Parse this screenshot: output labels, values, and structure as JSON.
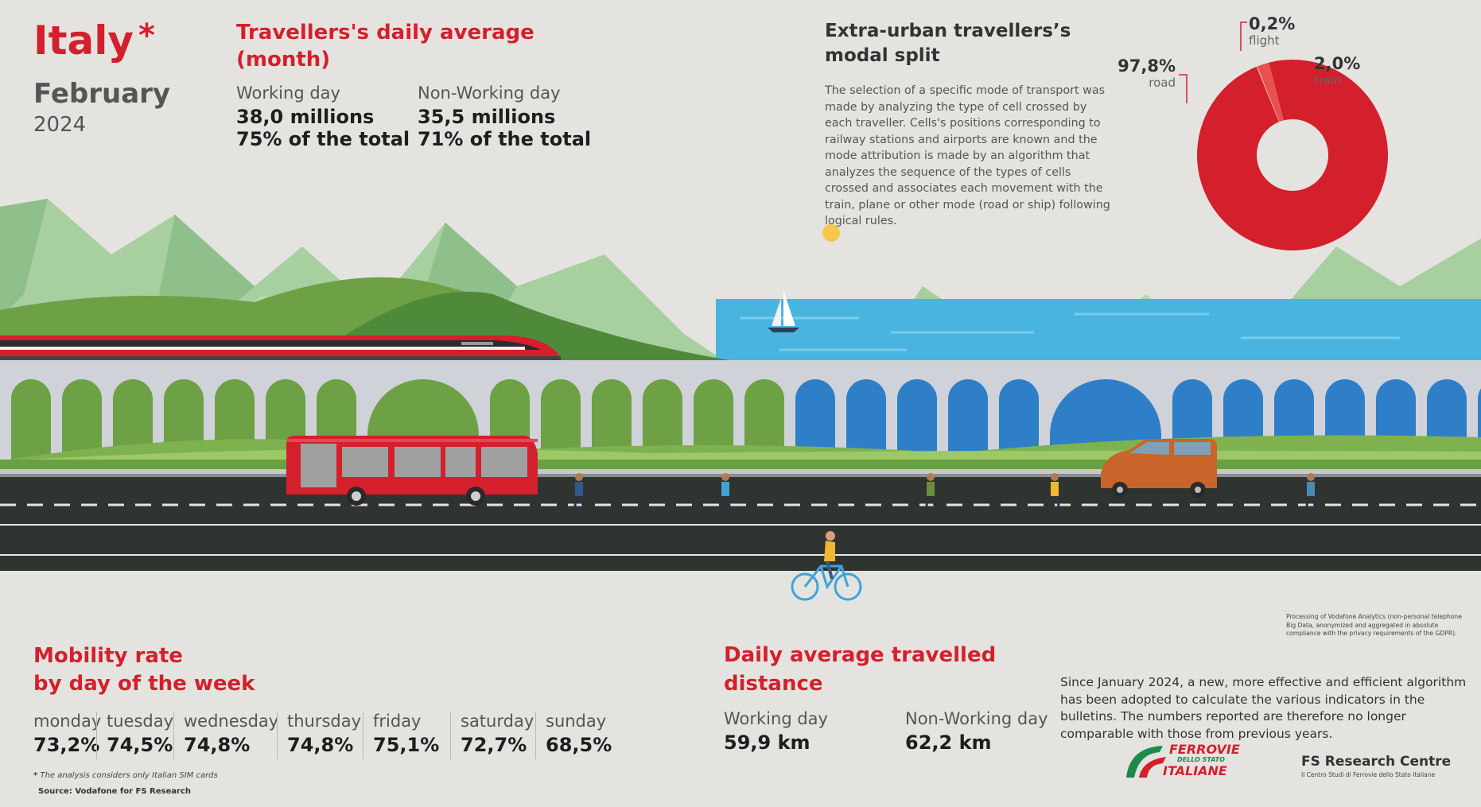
{
  "header": {
    "country": "Italy",
    "asterisk": "*",
    "month": "February",
    "year": "2024"
  },
  "daily_average": {
    "title_line1": "Travellers's daily average",
    "title_line2": "(month)",
    "working_label": "Working day",
    "working_value": "38,0 millions",
    "working_share": "75% of the total",
    "nonworking_label": "Non-Working day",
    "nonworking_value": "35,5 millions",
    "nonworking_share": "71% of the total"
  },
  "modal_split": {
    "title_line1": "Extra-urban travellers’s",
    "title_line2": "modal split",
    "description": "The selection of a specific mode of transport was made by analyzing the type of cell crossed by each traveller. Cells's positions corresponding to railway stations and airports are known and the mode attribution is made by an algorithm that analyzes the sequence of the types of cells crossed and associates each movement with the train, plane or other mode (road or ship) following logical rules."
  },
  "chart_data": [
    {
      "type": "pie",
      "title": "Extra-urban travellers’s modal split",
      "categories": [
        "road",
        "flight",
        "train"
      ],
      "values": [
        97.8,
        0.2,
        2.0
      ],
      "value_labels": [
        "97,8%",
        "0,2%",
        "2,0%"
      ],
      "colors": [
        "#d41f2c",
        "#f29b8c",
        "#e8514f"
      ],
      "donut": true
    },
    {
      "type": "table",
      "title": "Mobility rate by day of the week",
      "categories": [
        "monday",
        "tuesday",
        "wednesday",
        "thursday",
        "friday",
        "saturday",
        "sunday"
      ],
      "values": [
        73.2,
        74.5,
        74.8,
        74.8,
        75.1,
        72.7,
        68.5
      ],
      "value_labels": [
        "73,2%",
        "74,5%",
        "74,8%",
        "74,8%",
        "75,1%",
        "72,7%",
        "68,5%"
      ]
    }
  ],
  "mobility_rate": {
    "title_line1": "Mobility rate",
    "title_line2": "by day of the week"
  },
  "distance": {
    "title_line1": "Daily average travelled",
    "title_line2": "distance",
    "working_label": "Working day",
    "working_value": "59,9 km",
    "nonworking_label": "Non-Working day",
    "nonworking_value": "62,2 km"
  },
  "processing_note": "Processing of Vodafone Analytics (non-personal telephone Big Data, anonymized and aggregated in absolute compliance with the privacy requirements of the GDPR).",
  "algorithm_note": "Since January 2024, a new, more effective and efficient algorithm has been adopted to calculate the various indicators in the bulletins. The numbers reported are therefore no longer comparable with those from previous years.",
  "footnote_mark": "*",
  "footnote": "The analysis considers only Italian SIM cards",
  "source": "Source: Vodafone for FS Research",
  "logos": {
    "fs_line1": "FERROVIE",
    "fs_line2": "DELLO STATO",
    "fs_line3": "ITALIANE",
    "research_title": "FS Research Centre",
    "research_sub": "Il Centro Studi di Ferrovie dello Stato Italiane"
  },
  "colors": {
    "accent_red": "#d41f2c",
    "background": "#e4e3df"
  }
}
